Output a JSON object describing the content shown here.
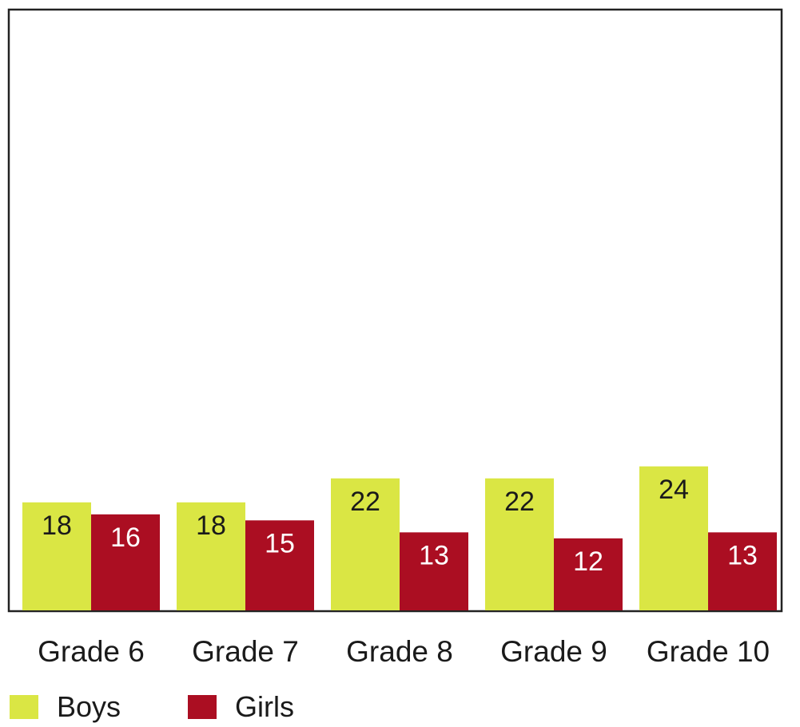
{
  "chart_data": {
    "type": "bar",
    "categories": [
      "Grade 6",
      "Grade 7",
      "Grade 8",
      "Grade 9",
      "Grade 10"
    ],
    "series": [
      {
        "name": "Boys",
        "values": [
          18,
          18,
          22,
          22,
          24
        ],
        "color": "#dae644",
        "label_color": "#1a1a1a"
      },
      {
        "name": "Girls",
        "values": [
          16,
          15,
          13,
          12,
          13
        ],
        "color": "#ab0e22",
        "label_color": "#ffffff"
      }
    ],
    "title": "",
    "xlabel": "",
    "ylabel": "",
    "ylim": [
      0,
      100
    ],
    "grid": false,
    "legend_position": "bottom-left"
  }
}
